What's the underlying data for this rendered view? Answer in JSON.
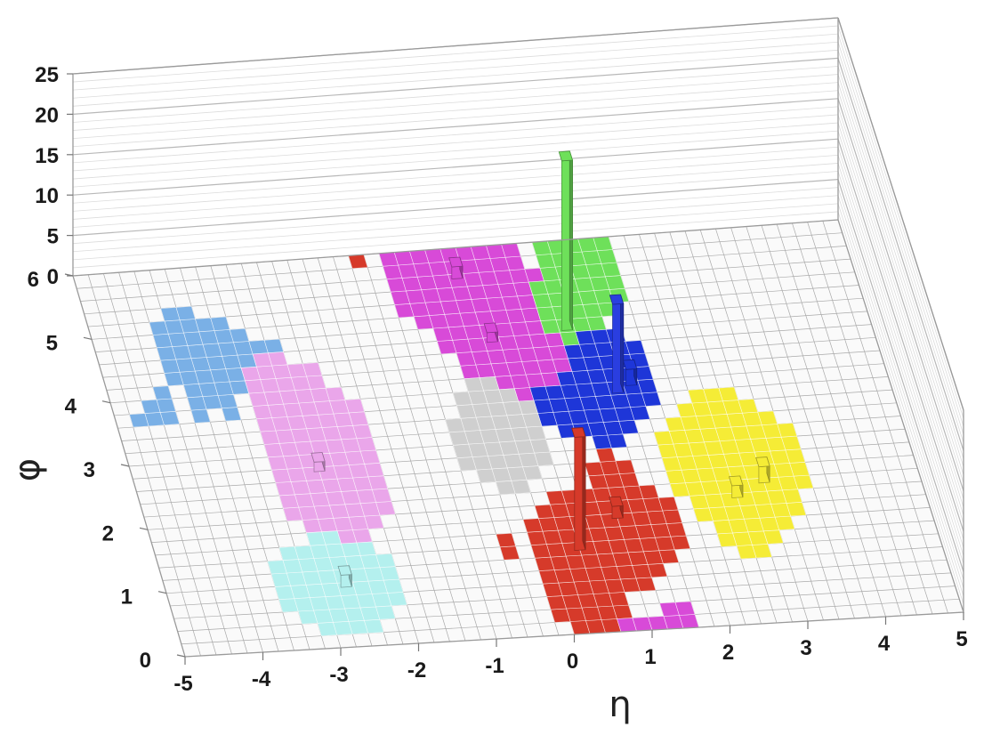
{
  "chart_data": {
    "type": "lego",
    "xlabel": "η",
    "ylabel": "φ",
    "zlabel": "",
    "xlim": [
      -5,
      5
    ],
    "ylim": [
      0,
      6
    ],
    "zlim": [
      0,
      25
    ],
    "x_ticks": [
      "-5",
      "-4",
      "-3",
      "-2",
      "-1",
      "0",
      "1",
      "2",
      "3",
      "4",
      "5"
    ],
    "y_ticks": [
      "0",
      "1",
      "2",
      "3",
      "4",
      "5",
      "6"
    ],
    "z_ticks": [
      "0",
      "5",
      "10",
      "15",
      "20",
      "25"
    ],
    "grid": true,
    "cell_size": 0.2,
    "regions": [
      {
        "color": "#7ab0e6",
        "cells": [
          [
            -4.2,
            4.2,
            5.0
          ],
          [
            -4.0,
            3.6,
            5.2
          ],
          [
            -3.8,
            3.7,
            5.2
          ],
          [
            -3.6,
            3.6,
            5.1
          ],
          [
            -3.4,
            3.9,
            5.0
          ],
          [
            -3.2,
            4.0,
            4.9
          ],
          [
            -3.0,
            4.2,
            4.7
          ],
          [
            -2.8,
            4.4,
            4.6
          ],
          [
            -4.4,
            3.5,
            4.1
          ],
          [
            -4.6,
            3.5,
            3.9
          ],
          [
            -4.8,
            3.6,
            3.7
          ]
        ]
      },
      {
        "color": "#eaa6ea",
        "cells": [
          [
            -3.2,
            2.0,
            4.2
          ],
          [
            -3.0,
            1.6,
            4.4
          ],
          [
            -2.8,
            1.6,
            4.4
          ],
          [
            -2.6,
            1.6,
            4.3
          ],
          [
            -2.4,
            1.5,
            4.2
          ],
          [
            -2.2,
            1.8,
            3.9
          ],
          [
            -2.0,
            2.0,
            3.6
          ]
        ]
      },
      {
        "color": "#b4f0ee",
        "cells": [
          [
            -3.6,
            0.6,
            1.2
          ],
          [
            -3.4,
            0.4,
            1.4
          ],
          [
            -3.2,
            0.3,
            1.5
          ],
          [
            -3.0,
            0.3,
            1.6
          ],
          [
            -2.8,
            0.3,
            1.6
          ],
          [
            -2.6,
            0.2,
            1.5
          ],
          [
            -2.4,
            0.4,
            1.4
          ],
          [
            -2.2,
            0.6,
            1.2
          ],
          [
            -4.2,
            5.9,
            6.0
          ]
        ]
      },
      {
        "color": "#d63a2a",
        "cells": [
          [
            -0.2,
            0.2,
            1.6
          ],
          [
            0.0,
            0.0,
            1.8
          ],
          [
            0.2,
            -0.1,
            2.0
          ],
          [
            0.4,
            0.0,
            2.1
          ],
          [
            0.6,
            0.2,
            2.0
          ],
          [
            0.8,
            0.6,
            2.4
          ],
          [
            1.0,
            0.6,
            2.6
          ],
          [
            1.2,
            0.8,
            2.4
          ],
          [
            1.4,
            1.0,
            2.0
          ],
          [
            1.6,
            1.2,
            1.8
          ],
          [
            -0.6,
            1.1,
            1.5
          ],
          [
            -1.8,
            6.0,
            6.0
          ],
          [
            -1.4,
            5.8,
            5.8
          ]
        ]
      },
      {
        "color": "#d84ad8",
        "cells": [
          [
            0.6,
            -0.1,
            0.1
          ],
          [
            0.8,
            -0.1,
            0.1
          ],
          [
            1.0,
            0.0,
            0.1
          ],
          [
            1.2,
            0.0,
            0.2
          ],
          [
            1.4,
            0.0,
            0.2
          ],
          [
            -1.0,
            5.0,
            5.8
          ],
          [
            -0.8,
            4.8,
            6.0
          ],
          [
            -0.6,
            4.4,
            6.0
          ],
          [
            -0.4,
            4.0,
            6.0
          ],
          [
            -0.2,
            3.8,
            6.0
          ],
          [
            0.0,
            3.6,
            6.0
          ],
          [
            0.2,
            3.6,
            5.9
          ],
          [
            0.4,
            3.7,
            5.9
          ],
          [
            0.6,
            3.8,
            5.8
          ],
          [
            0.8,
            3.9,
            5.4
          ]
        ]
      },
      {
        "color": "#6ee05a",
        "cells": [
          [
            0.8,
            4.6,
            5.3
          ],
          [
            1.0,
            4.4,
            5.8
          ],
          [
            1.2,
            4.4,
            6.0
          ],
          [
            1.4,
            4.6,
            6.0
          ],
          [
            1.6,
            4.8,
            6.0
          ],
          [
            1.8,
            5.0,
            5.8
          ]
        ]
      },
      {
        "color": "#1e36d8",
        "cells": [
          [
            0.4,
            3.2,
            3.6
          ],
          [
            0.6,
            3.0,
            3.7
          ],
          [
            0.8,
            3.0,
            3.9
          ],
          [
            1.0,
            2.9,
            4.2
          ],
          [
            1.2,
            2.9,
            4.4
          ],
          [
            1.4,
            3.0,
            4.5
          ],
          [
            1.6,
            3.3,
            4.4
          ],
          [
            1.8,
            3.4,
            4.2
          ]
        ]
      },
      {
        "color": "#f5ec36",
        "cells": [
          [
            1.8,
            2.0,
            2.8
          ],
          [
            2.0,
            1.6,
            3.0
          ],
          [
            2.2,
            1.2,
            3.2
          ],
          [
            2.4,
            1.0,
            3.4
          ],
          [
            2.6,
            1.0,
            3.4
          ],
          [
            2.8,
            1.2,
            3.4
          ],
          [
            3.0,
            1.4,
            3.2
          ],
          [
            3.2,
            1.6,
            3.0
          ],
          [
            3.4,
            2.0,
            2.8
          ]
        ]
      },
      {
        "color": "#cfcfcf",
        "cells": [
          [
            -0.8,
            2.6,
            3.2
          ],
          [
            -0.6,
            2.4,
            3.6
          ],
          [
            -0.4,
            2.2,
            3.8
          ],
          [
            -0.2,
            2.3,
            3.8
          ],
          [
            0.0,
            2.4,
            3.6
          ],
          [
            0.2,
            2.6,
            3.4
          ]
        ]
      }
    ],
    "towers": [
      {
        "eta": 1.1,
        "phi": 4.7,
        "height": 21,
        "color": "#6ee05a"
      },
      {
        "eta": 1.5,
        "phi": 3.7,
        "height": 11,
        "color": "#2a3ee0"
      },
      {
        "eta": 0.4,
        "phi": 1.35,
        "height": 14,
        "color": "#d63a2a"
      },
      {
        "eta": 1.7,
        "phi": 3.8,
        "height": 2,
        "color": "#1e36d8"
      },
      {
        "eta": 3.0,
        "phi": 2.2,
        "height": 2,
        "color": "#f5ec36"
      },
      {
        "eta": 2.6,
        "phi": 2.0,
        "height": 1.5,
        "color": "#f5ec36"
      },
      {
        "eta": 1.0,
        "phi": 1.8,
        "height": 1.5,
        "color": "#d63a2a"
      },
      {
        "eta": -2.7,
        "phi": 1.0,
        "height": 1.5,
        "color": "#b4f0ee"
      },
      {
        "eta": -2.6,
        "phi": 2.8,
        "height": 1.2,
        "color": "#eaa6ea"
      },
      {
        "eta": -0.1,
        "phi": 5.6,
        "height": 1.5,
        "color": "#d84ad8"
      },
      {
        "eta": 0.1,
        "phi": 4.6,
        "height": 1.2,
        "color": "#d84ad8"
      }
    ]
  }
}
